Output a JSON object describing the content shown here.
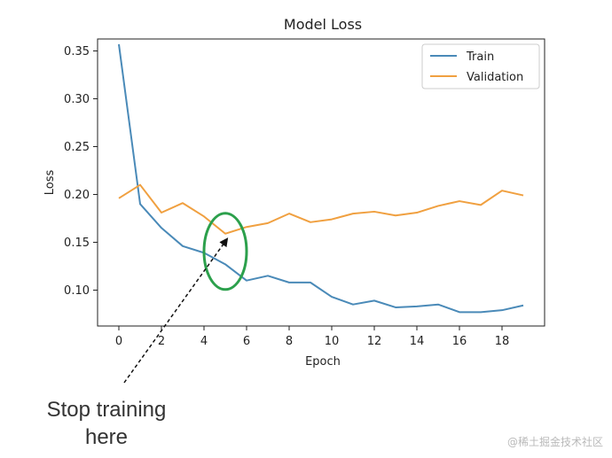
{
  "chart_data": {
    "type": "line",
    "title": "Model Loss",
    "xlabel": "Epoch",
    "ylabel": "Loss",
    "xlim": [
      -1,
      20
    ],
    "ylim": [
      0.0625,
      0.3625
    ],
    "xticks": [
      0,
      2,
      4,
      6,
      8,
      10,
      12,
      14,
      16,
      18
    ],
    "yticks": [
      0.1,
      0.15,
      0.2,
      0.25,
      0.3,
      0.35
    ],
    "x": [
      0,
      1,
      2,
      3,
      4,
      5,
      6,
      7,
      8,
      9,
      10,
      11,
      12,
      13,
      14,
      15,
      16,
      17,
      18,
      19
    ],
    "series": [
      {
        "name": "Train",
        "color": "#4a8ab8",
        "values": [
          0.357,
          0.19,
          0.165,
          0.146,
          0.139,
          0.127,
          0.11,
          0.115,
          0.108,
          0.108,
          0.093,
          0.085,
          0.089,
          0.082,
          0.083,
          0.085,
          0.077,
          0.077,
          0.079,
          0.084
        ]
      },
      {
        "name": "Validation",
        "color": "#f0a040",
        "values": [
          0.196,
          0.21,
          0.181,
          0.191,
          0.177,
          0.159,
          0.166,
          0.17,
          0.18,
          0.171,
          0.174,
          0.18,
          0.182,
          0.178,
          0.181,
          0.188,
          0.193,
          0.189,
          0.204,
          0.199
        ]
      }
    ],
    "legend": "top-right",
    "annotation": {
      "text_lines": [
        "Stop training",
        "here"
      ],
      "point": {
        "x": 5,
        "y": 0.159
      },
      "highlight_color": "#2ca04c"
    }
  },
  "watermark": "@稀土掘金技术社区"
}
